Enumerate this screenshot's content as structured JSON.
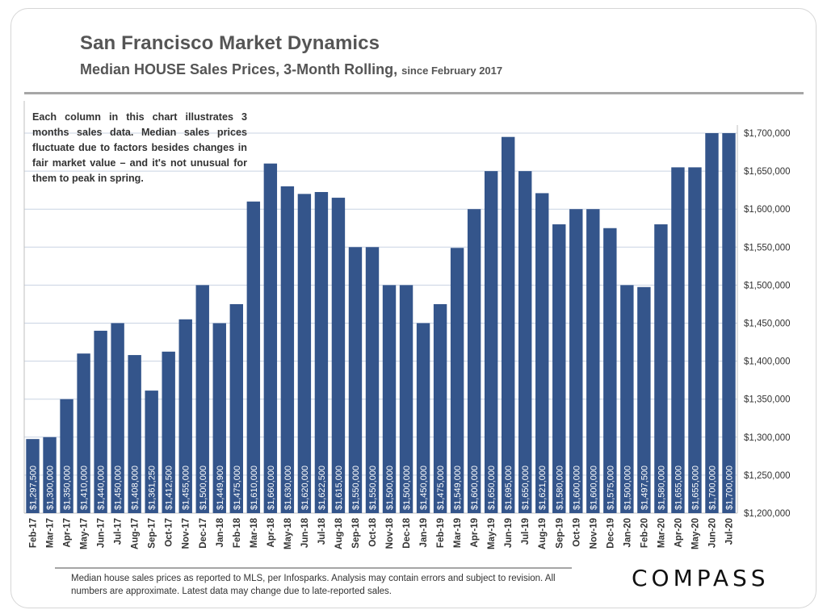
{
  "header": {
    "title": "San Francisco Market Dynamics",
    "subtitle": "Median HOUSE Sales Prices, 3-Month Rolling,",
    "subtitle_small": "since February 2017"
  },
  "note": "Each column in this chart illustrates 3 months sales data. Median sales prices fluctuate due to factors besides changes in fair market value – and it's not unusual for them to peak in spring.",
  "footer": "Median house sales prices as reported to MLS, per Infosparks.  Analysis may contain errors and subject to revision. All numbers are approximate. Latest data may change due to late-reported sales.",
  "logo": "COMPASS",
  "colors": {
    "bar": "#34558b",
    "grid": "#c9d3e3",
    "text": "#555555"
  },
  "chart_data": {
    "type": "bar",
    "categories": [
      "Feb-17",
      "Mar-17",
      "Apr-17",
      "May-17",
      "Jun-17",
      "Jul-17",
      "Aug-17",
      "Sep-17",
      "Oct-17",
      "Nov-17",
      "Dec-17",
      "Jan-18",
      "Feb-18",
      "Mar-18",
      "Apr-18",
      "May-18",
      "Jun-18",
      "Jul-18",
      "Aug-18",
      "Sep-18",
      "Oct-18",
      "Nov-18",
      "Dec-18",
      "Jan-19",
      "Feb-19",
      "Mar-19",
      "Apr-19",
      "May-19",
      "Jun-19",
      "Jul-19",
      "Aug-19",
      "Sep-19",
      "Oct-19",
      "Nov-19",
      "Dec-19",
      "Jan-20",
      "Feb-20",
      "Mar-20",
      "Apr-20",
      "May-20",
      "Jun-20",
      "Jul-20"
    ],
    "values": [
      1297500,
      1300000,
      1350000,
      1410000,
      1440000,
      1450000,
      1408000,
      1361250,
      1412500,
      1455000,
      1500000,
      1449900,
      1475000,
      1610000,
      1660000,
      1630000,
      1620000,
      1622500,
      1615000,
      1550000,
      1550000,
      1500000,
      1500000,
      1450000,
      1475000,
      1549000,
      1600000,
      1650000,
      1695000,
      1650000,
      1621000,
      1580000,
      1600000,
      1600000,
      1575000,
      1500000,
      1497500,
      1580000,
      1655000,
      1655000,
      1700000,
      1700000
    ],
    "labels": [
      "$1,297,500",
      "$1,300,000",
      "$1,350,000",
      "$1,410,000",
      "$1,440,000",
      "$1,450,000",
      "$1,408,000",
      "$1,361,250",
      "$1,412,500",
      "$1,455,000",
      "$1,500,000",
      "$1,449,900",
      "$1,475,000",
      "$1,610,000",
      "$1,660,000",
      "$1,630,000",
      "$1,620,000",
      "$1,622,500",
      "$1,615,000",
      "$1,550,000",
      "$1,550,000",
      "$1,500,000",
      "$1,500,000",
      "$1,450,000",
      "$1,475,000",
      "$1,549,000",
      "$1,600,000",
      "$1,650,000",
      "$1,695,000",
      "$1,650,000",
      "$1,621,000",
      "$1,580,000",
      "$1,600,000",
      "$1,600,000",
      "$1,575,000",
      "$1,500,000",
      "$1,497,500",
      "$1,580,000",
      "$1,655,000",
      "$1,655,000",
      "$1,700,000",
      "$1,700,000"
    ],
    "ylim": [
      1200000,
      1700000
    ],
    "yticks": [
      1200000,
      1250000,
      1300000,
      1350000,
      1400000,
      1450000,
      1500000,
      1550000,
      1600000,
      1650000,
      1700000
    ],
    "ytick_labels": [
      "$1,200,000",
      "$1,250,000",
      "$1,300,000",
      "$1,350,000",
      "$1,400,000",
      "$1,450,000",
      "$1,500,000",
      "$1,550,000",
      "$1,600,000",
      "$1,650,000",
      "$1,700,000"
    ],
    "y_axis_side": "right",
    "grid": true,
    "xlabel": "",
    "ylabel": ""
  }
}
